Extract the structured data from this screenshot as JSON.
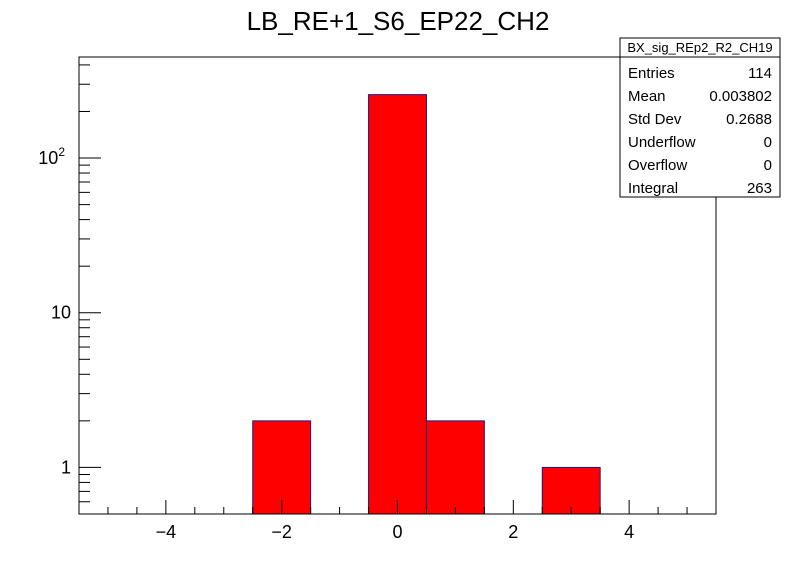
{
  "chart_data": {
    "type": "bar",
    "title": "LB_RE+1_S6_EP22_CH2",
    "xlabel": "",
    "ylabel": "",
    "x_scale": "linear",
    "y_scale": "log",
    "xlim": [
      -5.5,
      5.5
    ],
    "ylim": [
      0.5,
      450
    ],
    "bin_width": 1,
    "bins": [
      {
        "x": -2,
        "value": 2
      },
      {
        "x": 0,
        "value": 257
      },
      {
        "x": 1,
        "value": 2
      },
      {
        "x": 3,
        "value": 1
      }
    ],
    "x_ticks": [
      {
        "value": -4,
        "label": "−4"
      },
      {
        "value": -2,
        "label": "−2"
      },
      {
        "value": 0,
        "label": "0"
      },
      {
        "value": 2,
        "label": "2"
      },
      {
        "value": 4,
        "label": "4"
      }
    ],
    "y_ticks": [
      {
        "value": 1,
        "label": "1"
      },
      {
        "value": 10,
        "label": "10"
      },
      {
        "value": 100,
        "label": "10",
        "exponent": "2"
      }
    ],
    "fill_color": "#ff0000",
    "edge_color": "#1a1a8c",
    "grid": false,
    "legend": "none"
  },
  "stats_box": {
    "title": "BX_sig_REp2_R2_CH19",
    "rows": [
      {
        "label": "Entries",
        "value": "114"
      },
      {
        "label": "Mean",
        "value": "0.003802"
      },
      {
        "label": "Std Dev",
        "value": "0.2688"
      },
      {
        "label": "Underflow",
        "value": "0"
      },
      {
        "label": "Overflow",
        "value": "0"
      },
      {
        "label": "Integral",
        "value": "263"
      }
    ]
  }
}
